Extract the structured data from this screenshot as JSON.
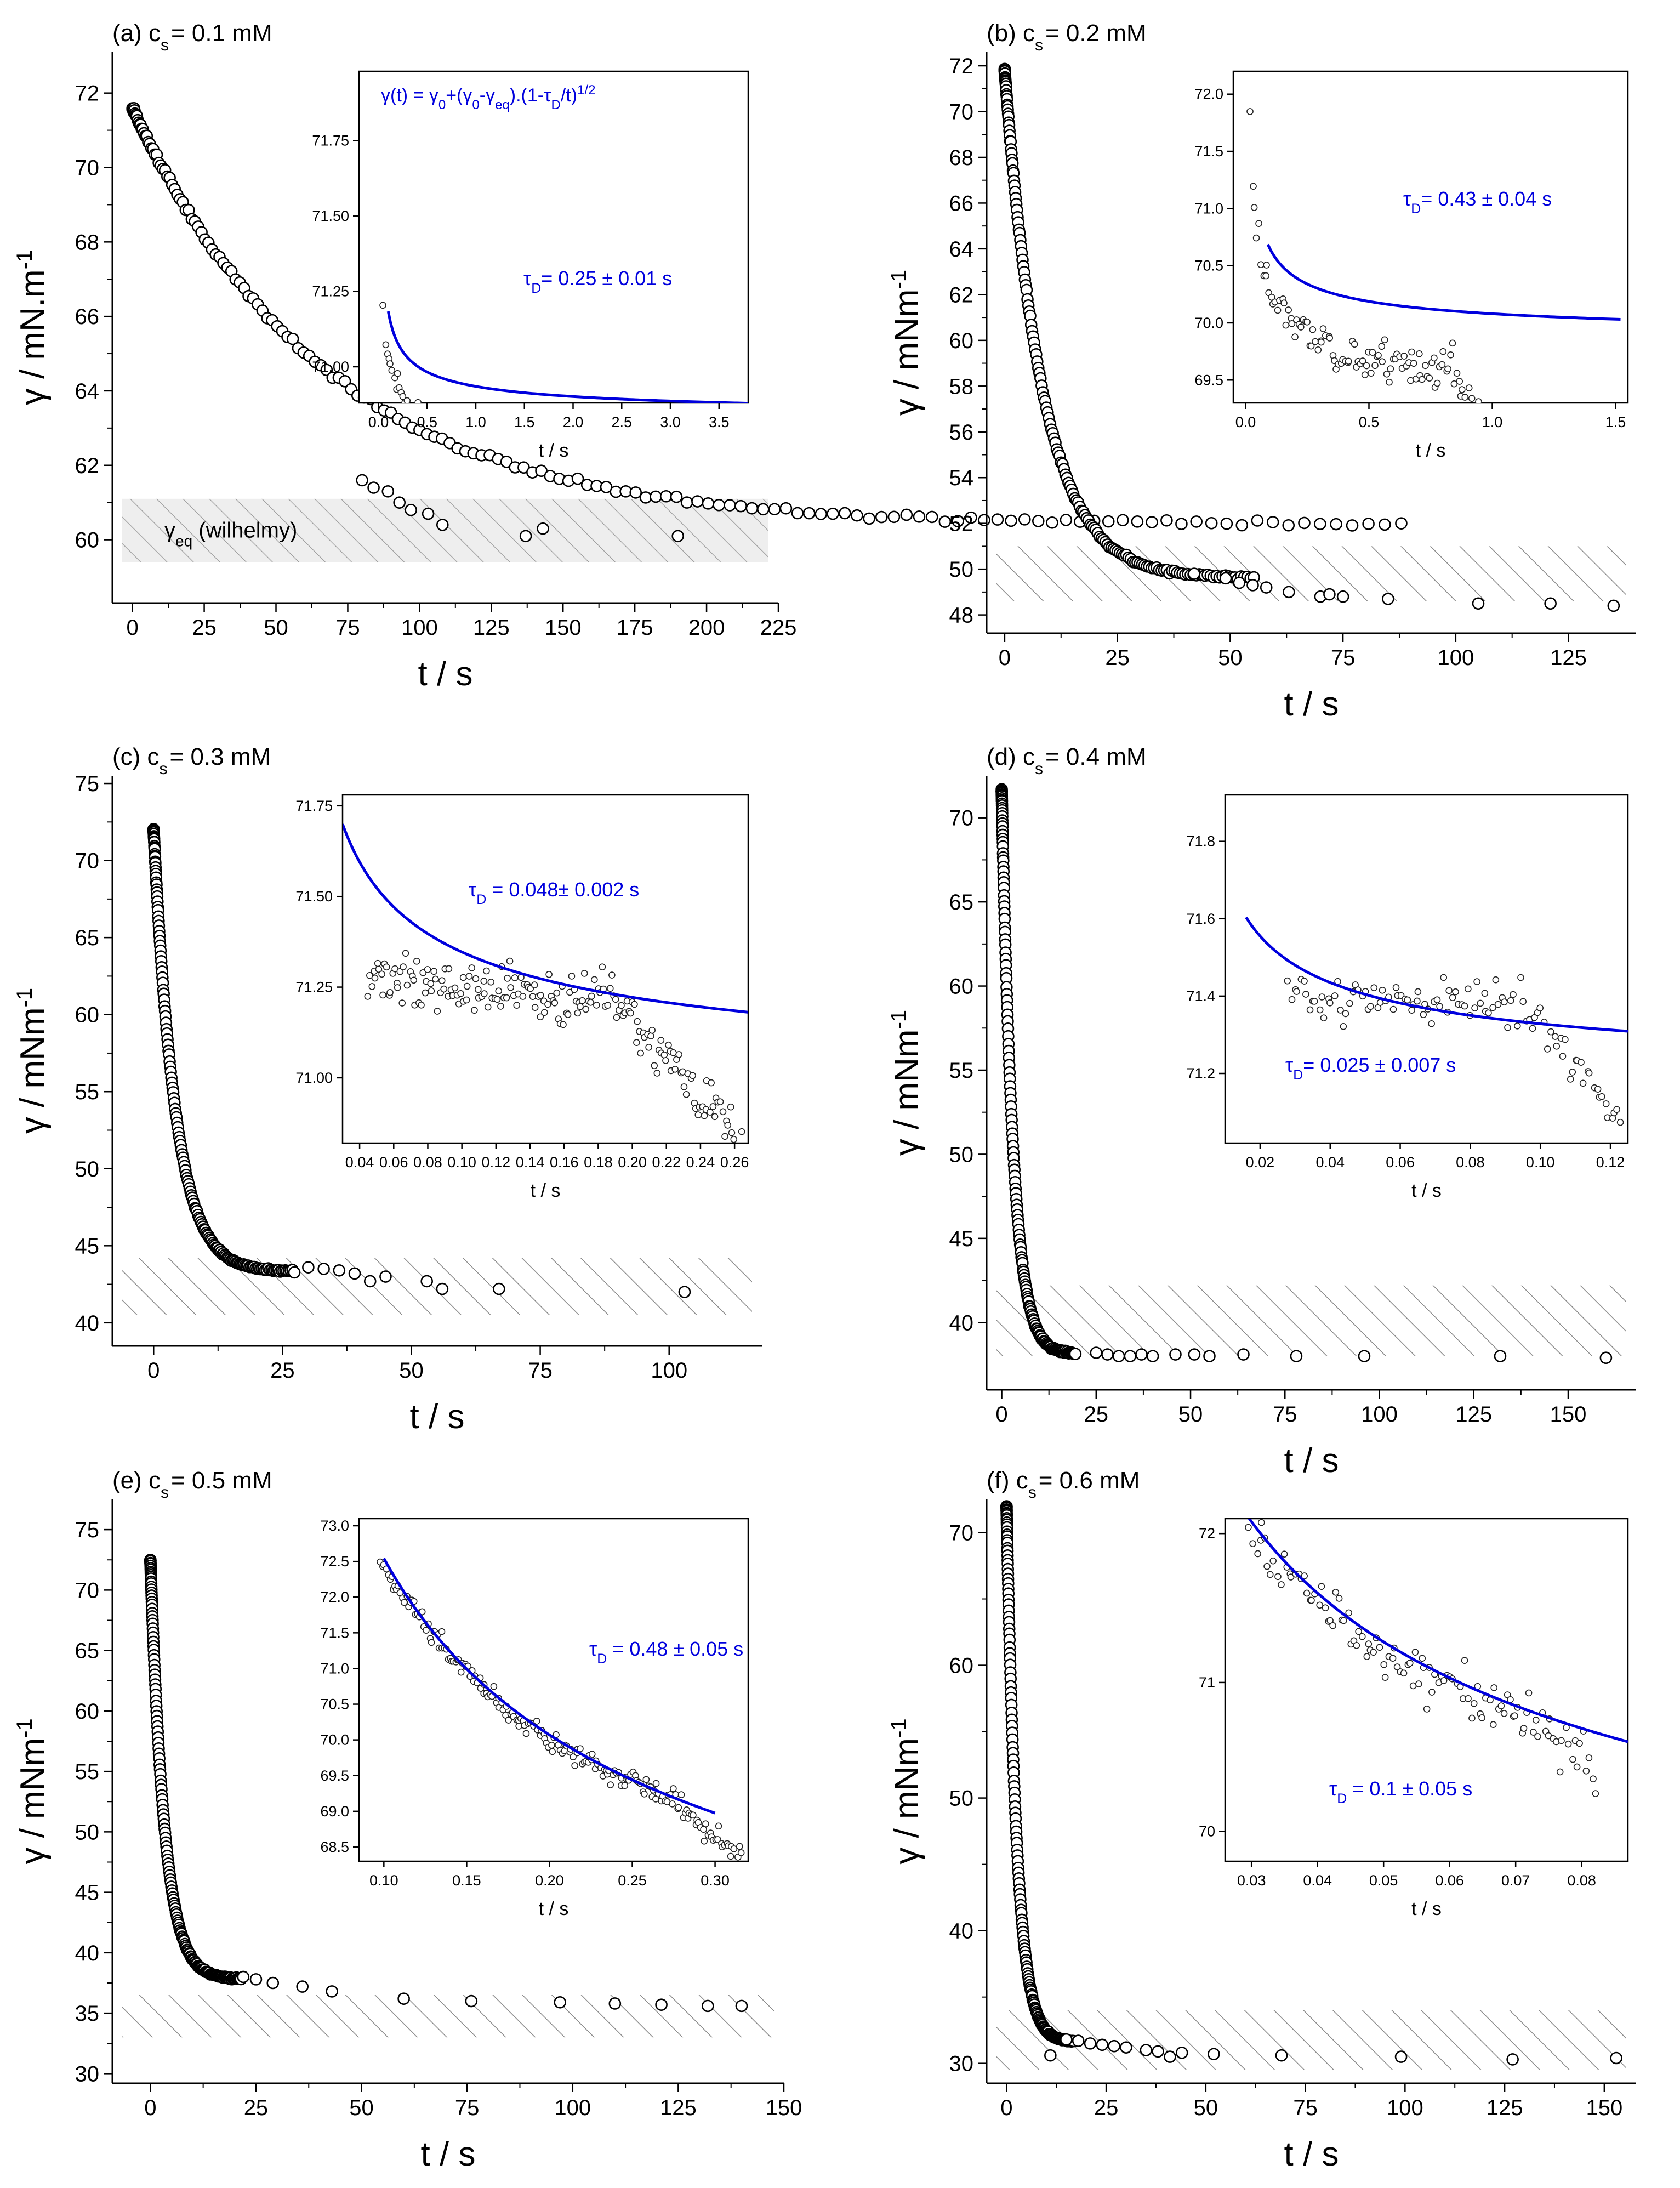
{
  "chart_data": [
    {
      "type": "scatter",
      "panel": "a",
      "title_prefix": "(a) c",
      "title_sub": "s",
      "title_suffix": "= 0.1 mM",
      "xlabel": "t / s",
      "ylabel": "γ / mN.m",
      "ylabel_sup": "-1",
      "xlim": [
        -7,
        225
      ],
      "ylim": [
        58.3,
        73.1
      ],
      "xticks": [
        0,
        25,
        50,
        75,
        100,
        125,
        150,
        175,
        200,
        225
      ],
      "yticks": [
        60,
        62,
        64,
        66,
        68,
        70,
        72
      ],
      "eq_band": [
        59.4,
        61.1
      ],
      "band_style": "hatched-grey",
      "band_label_pre": "γ",
      "band_label_sub": "eq",
      "band_label_post": " (wilhelmy)",
      "curve": {
        "t0": 0,
        "gamma_start": 71.6,
        "gamma_end": 60.4,
        "tau": 68
      },
      "sparse_points": [
        [
          80,
          61.6
        ],
        [
          84,
          61.4
        ],
        [
          89,
          61.3
        ],
        [
          93,
          61.0
        ],
        [
          97,
          60.8
        ],
        [
          103,
          60.7
        ],
        [
          108,
          60.4
        ],
        [
          137,
          60.1
        ],
        [
          143,
          60.3
        ],
        [
          190,
          60.1
        ]
      ],
      "inset": {
        "xlim": [
          -0.2,
          3.8
        ],
        "ylim": [
          70.88,
          71.98
        ],
        "xticks": [
          0,
          0.5,
          1.0,
          1.5,
          2.0,
          2.5,
          3.0,
          3.5
        ],
        "xtick_labels": [
          "0.0",
          "0.5",
          "1.0",
          "1.5",
          "2.0",
          "2.5",
          "3.0",
          "3.5"
        ],
        "yticks": [
          71.0,
          71.25,
          71.5,
          71.75
        ],
        "ytick_labels": [
          "71.00",
          "71.25",
          "71.50",
          "71.75"
        ],
        "xlabel": "t / s",
        "fit": {
          "gamma_eq": 70.82,
          "A": 0.115,
          "x_start": 0.1,
          "x_end": 3.8
        },
        "points": {
          "x0": 0.05,
          "x1": 3.6,
          "n": 190,
          "g_eq": 70.68,
          "A": 0.115,
          "noise": 0.035,
          "drift_end": 0.0,
          "drift_start": 1.0,
          "seed": 11
        },
        "formula": "γ(t) = γ0+(γ0-γeq).(1-τD/t)1/2",
        "tau_label": "τD= 0.25 ± 0.01  s"
      }
    },
    {
      "type": "scatter",
      "panel": "b",
      "title_prefix": "(b) c",
      "title_sub": "s",
      "title_suffix": "= 0.2 mM",
      "xlabel": "t / s",
      "ylabel": "γ / mNm",
      "ylabel_sup": "-1",
      "xlim": [
        -4,
        140
      ],
      "ylim": [
        47.2,
        72.6
      ],
      "xticks": [
        0,
        25,
        50,
        75,
        100,
        125
      ],
      "yticks": [
        48,
        50,
        52,
        54,
        56,
        58,
        60,
        62,
        64,
        66,
        68,
        70,
        72
      ],
      "eq_band": [
        48.6,
        51.0
      ],
      "band_style": "hatched",
      "curve": {
        "t0": 0,
        "gamma_start": 71.8,
        "gamma_end": 49.6,
        "tau": 8.5
      },
      "sparse_points": [
        [
          42,
          49.8
        ],
        [
          49,
          49.6
        ],
        [
          52,
          49.4
        ],
        [
          55,
          49.3
        ],
        [
          58,
          49.2
        ],
        [
          63,
          49.0
        ],
        [
          70,
          48.8
        ],
        [
          72,
          48.9
        ],
        [
          75,
          48.8
        ],
        [
          85,
          48.7
        ],
        [
          105,
          48.5
        ],
        [
          121,
          48.5
        ],
        [
          135,
          48.4
        ]
      ],
      "inset": {
        "xlim": [
          -0.05,
          1.55
        ],
        "ylim": [
          69.3,
          72.2
        ],
        "xticks": [
          0,
          0.5,
          1.0,
          1.5
        ],
        "xtick_labels": [
          "0.0",
          "0.5",
          "1.0",
          "1.5"
        ],
        "yticks": [
          69.5,
          70.0,
          70.5,
          71.0,
          71.5,
          72.0
        ],
        "ytick_labels": [
          "69.5",
          "70.0",
          "70.5",
          "71.0",
          "71.5",
          "72.0"
        ],
        "xlabel": "t / s",
        "fit": {
          "gamma_eq": 69.82,
          "A": 0.26,
          "x_start": 0.09,
          "x_end": 1.52
        },
        "points": {
          "x0": 0.02,
          "x1": 1.12,
          "n": 130,
          "g_eq": 69.2,
          "A": 0.35,
          "noise": 0.2,
          "drift_end": -1.0,
          "drift_start": 0.85,
          "seed": 23
        },
        "tau_label": "τD= 0.43 ± 0.04 s"
      }
    },
    {
      "type": "scatter",
      "panel": "c",
      "title_prefix": "(c) c",
      "title_sub": "s",
      "title_suffix": "= 0.3 mM",
      "xlabel": "t / s",
      "ylabel": "γ / mNm",
      "ylabel_sup": "-1",
      "xlim": [
        -8,
        118
      ],
      "ylim": [
        38.5,
        75.5
      ],
      "xticks": [
        0,
        25,
        50,
        75,
        100
      ],
      "yticks": [
        40,
        45,
        50,
        55,
        60,
        65,
        70,
        75
      ],
      "eq_band": [
        40.5,
        44.2
      ],
      "band_style": "hatched",
      "curve": {
        "t0": 0,
        "gamma_start": 72.0,
        "gamma_end": 43.3,
        "tau": 4.2
      },
      "sparse_points": [
        [
          30,
          43.6
        ],
        [
          33,
          43.5
        ],
        [
          36,
          43.4
        ],
        [
          39,
          43.2
        ],
        [
          42,
          42.7
        ],
        [
          45,
          43.0
        ],
        [
          53,
          42.7
        ],
        [
          56,
          42.2
        ],
        [
          67,
          42.2
        ],
        [
          103,
          42.0
        ]
      ],
      "inset": {
        "xlim": [
          0.03,
          0.268
        ],
        "ylim": [
          70.82,
          71.78
        ],
        "xticks": [
          0.04,
          0.06,
          0.08,
          0.1,
          0.12,
          0.14,
          0.16,
          0.18,
          0.2,
          0.22,
          0.24,
          0.26
        ],
        "xtick_labels": [
          "0.04",
          "0.06",
          "0.08",
          "0.10",
          "0.12",
          "0.14",
          "0.16",
          "0.18",
          "0.20",
          "0.22",
          "0.24",
          "0.26"
        ],
        "yticks": [
          71.0,
          71.25,
          71.5,
          71.75
        ],
        "ytick_labels": [
          "71.00",
          "71.25",
          "71.50",
          "71.75"
        ],
        "xlabel": "t / s",
        "fit": {
          "gamma_eq": 70.92,
          "A": 0.135,
          "x_start": 0.03,
          "x_end": 0.268
        },
        "points": {
          "x0": 0.045,
          "x1": 0.265,
          "n": 200,
          "g_eq": 71.15,
          "A": 0.03,
          "noise": 0.07,
          "drift_end": -0.4,
          "drift_start": 0.19,
          "seed": 37
        },
        "tau_label": "τD = 0.048± 0.002 s"
      }
    },
    {
      "type": "scatter",
      "panel": "d",
      "title_prefix": "(d) c",
      "title_sub": "s",
      "title_suffix": "= 0.4 mM",
      "xlabel": "t / s",
      "ylabel": "γ / mNm",
      "ylabel_sup": "-1",
      "xlim": [
        -4,
        168
      ],
      "ylim": [
        36,
        72.5
      ],
      "xticks": [
        0,
        25,
        50,
        75,
        100,
        125,
        150
      ],
      "yticks": [
        40,
        45,
        50,
        55,
        60,
        65,
        70
      ],
      "eq_band": [
        38.0,
        42.2
      ],
      "band_style": "hatched",
      "curve": {
        "t0": 0,
        "gamma_start": 71.6,
        "gamma_end": 38.1,
        "tau": 3.0
      },
      "sparse_points": [
        [
          25,
          38.2
        ],
        [
          28,
          38.1
        ],
        [
          31,
          38.0
        ],
        [
          34,
          38.0
        ],
        [
          37,
          38.1
        ],
        [
          40,
          38.0
        ],
        [
          46,
          38.1
        ],
        [
          51,
          38.1
        ],
        [
          55,
          38.0
        ],
        [
          64,
          38.1
        ],
        [
          78,
          38.0
        ],
        [
          96,
          38.0
        ],
        [
          132,
          38.0
        ],
        [
          160,
          37.9
        ]
      ],
      "inset": {
        "xlim": [
          0.01,
          0.125
        ],
        "ylim": [
          71.02,
          71.92
        ],
        "xticks": [
          0.02,
          0.04,
          0.06,
          0.08,
          0.1,
          0.12
        ],
        "xtick_labels": [
          "0.02",
          "0.04",
          "0.06",
          "0.08",
          "0.10",
          "0.12"
        ],
        "yticks": [
          71.2,
          71.4,
          71.6,
          71.8
        ],
        "ytick_labels": [
          "71.2",
          "71.4",
          "71.6",
          "71.8"
        ],
        "xlabel": "t / s",
        "fit": {
          "gamma_eq": 71.145,
          "A": 0.058,
          "x_start": 0.016,
          "x_end": 0.125
        },
        "points": {
          "x0": 0.028,
          "x1": 0.123,
          "n": 110,
          "g_eq": 71.35,
          "A": 0.01,
          "noise": 0.06,
          "drift_end": -0.3,
          "drift_start": 0.095,
          "seed": 51
        },
        "tau_label": "τD= 0.025 ± 0.007 s"
      }
    },
    {
      "type": "scatter",
      "panel": "e",
      "title_prefix": "(e) c",
      "title_sub": "s",
      "title_suffix": "= 0.5 mM",
      "xlabel": "t / s",
      "ylabel": "γ / mNm",
      "ylabel_sup": "-1",
      "xlim": [
        -9,
        150
      ],
      "ylim": [
        29.2,
        77.5
      ],
      "xticks": [
        0,
        25,
        50,
        75,
        100,
        125,
        150
      ],
      "yticks": [
        30,
        35,
        40,
        45,
        50,
        55,
        60,
        65,
        70,
        75
      ],
      "eq_band": [
        33.0,
        36.5
      ],
      "band_style": "hatched",
      "curve": {
        "t0": 0,
        "gamma_start": 72.5,
        "gamma_end": 37.8,
        "tau": 3.3
      },
      "sparse_points": [
        [
          22,
          38.0
        ],
        [
          25,
          37.8
        ],
        [
          29,
          37.5
        ],
        [
          36,
          37.2
        ],
        [
          43,
          36.8
        ],
        [
          60,
          36.2
        ],
        [
          76,
          36.0
        ],
        [
          97,
          35.9
        ],
        [
          110,
          35.8
        ],
        [
          121,
          35.7
        ],
        [
          132,
          35.6
        ],
        [
          140,
          35.6
        ]
      ],
      "inset": {
        "xlim": [
          0.085,
          0.32
        ],
        "ylim": [
          68.3,
          73.1
        ],
        "xticks": [
          0.1,
          0.15,
          0.2,
          0.25,
          0.3
        ],
        "xtick_labels": [
          "0.10",
          "0.15",
          "0.20",
          "0.25",
          "0.30"
        ],
        "yticks": [
          68.5,
          69.0,
          69.5,
          70.0,
          70.5,
          71.0,
          71.5,
          72.0,
          72.5,
          73.0
        ],
        "ytick_labels": [
          "68.5",
          "69.0",
          "69.5",
          "70.0",
          "70.5",
          "71.0",
          "71.5",
          "72.0",
          "72.5",
          "73.0"
        ],
        "xlabel": "t / s",
        "fit": {
          "gamma_eq": 64.1,
          "A": 2.67,
          "x_start": 0.1,
          "x_end": 0.3
        },
        "points": {
          "x0": 0.098,
          "x1": 0.318,
          "n": 200,
          "g_eq": 64.05,
          "A": 2.67,
          "noise": 0.15,
          "drift_end": -0.5,
          "drift_start": 0.28,
          "seed": 67
        },
        "tau_label": "τD = 0.48 ± 0.05 s"
      }
    },
    {
      "type": "scatter",
      "panel": "f",
      "title_prefix": "(f) c",
      "title_sub": "s",
      "title_suffix": "= 0.6 mM",
      "xlabel": "t / s",
      "ylabel": "γ / mNm",
      "ylabel_sup": "-1",
      "xlim": [
        -5,
        158
      ],
      "ylim": [
        28.5,
        72.5
      ],
      "xticks": [
        0,
        25,
        50,
        75,
        100,
        125,
        150
      ],
      "yticks": [
        30,
        40,
        50,
        60,
        70
      ],
      "eq_band": [
        29.5,
        34.0
      ],
      "band_style": "hatched",
      "curve": {
        "t0": 0,
        "gamma_start": 72.0,
        "gamma_end": 31.6,
        "tau": 2.6
      },
      "sparse_points": [
        [
          11,
          30.6
        ],
        [
          15,
          31.8
        ],
        [
          18,
          31.7
        ],
        [
          21,
          31.5
        ],
        [
          24,
          31.4
        ],
        [
          27,
          31.3
        ],
        [
          30,
          31.2
        ],
        [
          35,
          31.0
        ],
        [
          38,
          30.9
        ],
        [
          41,
          30.5
        ],
        [
          44,
          30.8
        ],
        [
          52,
          30.7
        ],
        [
          69,
          30.6
        ],
        [
          99,
          30.5
        ],
        [
          127,
          30.3
        ],
        [
          153,
          30.4
        ]
      ],
      "inset": {
        "xlim": [
          0.026,
          0.087
        ],
        "ylim": [
          69.8,
          72.1
        ],
        "xticks": [
          0.03,
          0.04,
          0.05,
          0.06,
          0.07,
          0.08
        ],
        "xtick_labels": [
          "0.03",
          "0.04",
          "0.05",
          "0.06",
          "0.07",
          "0.08"
        ],
        "yticks": [
          70,
          71,
          72
        ],
        "ytick_labels": [
          "70",
          "71",
          "72"
        ],
        "xlabel": "t / s",
        "fit": {
          "gamma_eq": 68.5,
          "A": 0.62,
          "x_start": 0.0285,
          "x_end": 0.087
        },
        "points": {
          "x0": 0.029,
          "x1": 0.082,
          "n": 120,
          "g_eq": 68.45,
          "A": 0.62,
          "noise": 0.17,
          "drift_end": -0.25,
          "drift_start": 0.074,
          "seed": 83
        },
        "tau_label": "τD = 0.1 ± 0.05 s"
      }
    }
  ]
}
